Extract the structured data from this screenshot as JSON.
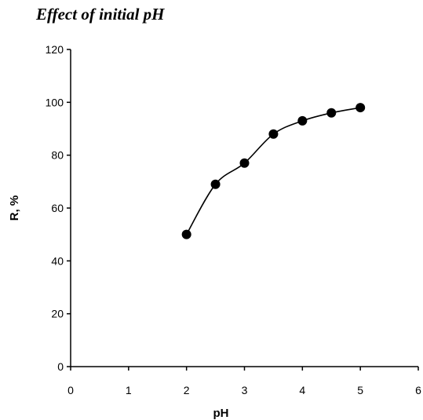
{
  "chart_data": {
    "type": "line",
    "title": "Effect of initial pH",
    "xlabel": "pH",
    "ylabel": "R, %",
    "xlim": [
      0,
      6
    ],
    "ylim": [
      0,
      120
    ],
    "x_ticks": [
      0,
      1,
      2,
      3,
      4,
      5,
      6
    ],
    "y_ticks": [
      0,
      20,
      40,
      60,
      80,
      100,
      120
    ],
    "grid": false,
    "legend": "none",
    "line_style": "smooth",
    "marker": "circle",
    "colors": {
      "series": "#000000",
      "axis": "#000000"
    },
    "series": [
      {
        "x": [
          2,
          2.5,
          3,
          3.5,
          4,
          4.5,
          5
        ],
        "y": [
          50,
          69,
          77,
          88,
          93,
          96,
          98
        ]
      }
    ]
  }
}
